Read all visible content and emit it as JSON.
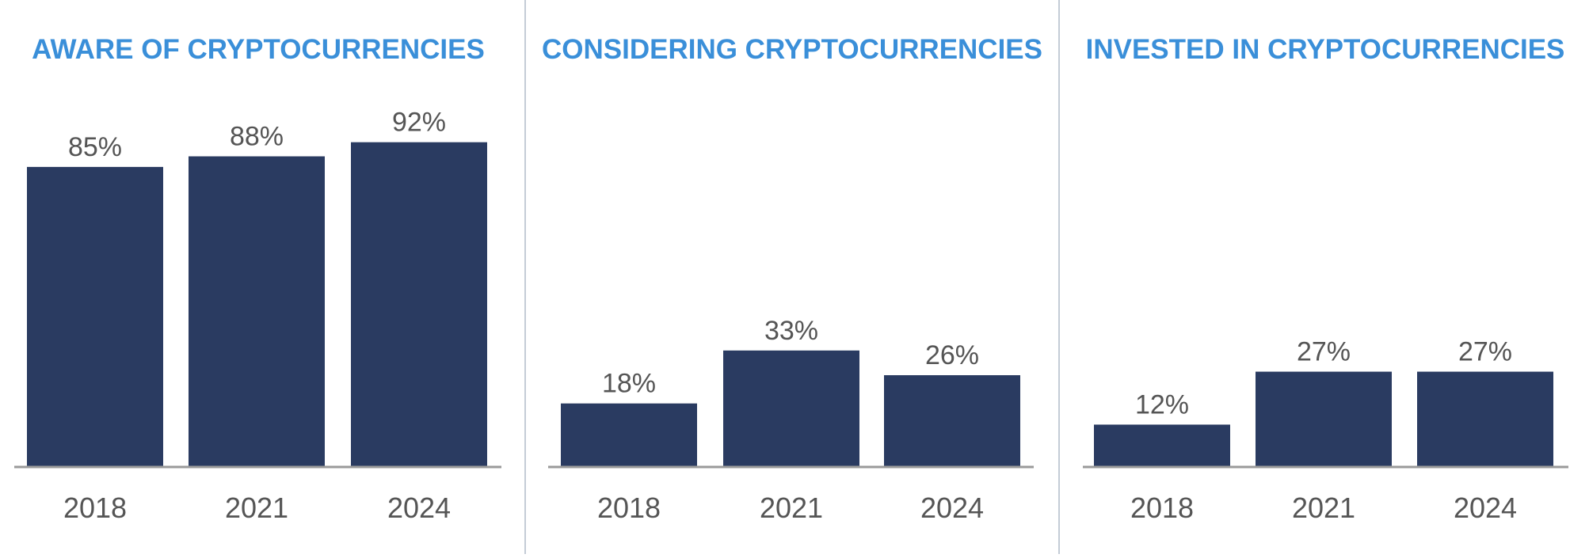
{
  "colors": {
    "bar": "#2a3b61",
    "title": "#3a8fd9",
    "label": "#555555",
    "baseline": "#9a9a9a",
    "divider": "#c4ccd6"
  },
  "chart_data": [
    {
      "type": "bar",
      "title": "AWARE OF CRYPTOCURRENCIES",
      "categories": [
        "2018",
        "2021",
        "2024"
      ],
      "values": [
        85,
        88,
        92
      ],
      "value_labels": [
        "85%",
        "88%",
        "92%"
      ],
      "ylim": [
        0,
        100
      ],
      "grid": false
    },
    {
      "type": "bar",
      "title": "CONSIDERING CRYPTOCURRENCIES",
      "categories": [
        "2018",
        "2021",
        "2024"
      ],
      "values": [
        18,
        33,
        26
      ],
      "value_labels": [
        "18%",
        "33%",
        "26%"
      ],
      "ylim": [
        0,
        100
      ],
      "grid": false
    },
    {
      "type": "bar",
      "title": "INVESTED IN CRYPTOCURRENCIES",
      "categories": [
        "2018",
        "2021",
        "2024"
      ],
      "values": [
        12,
        27,
        27
      ],
      "value_labels": [
        "12%",
        "27%",
        "27%"
      ],
      "ylim": [
        0,
        100
      ],
      "grid": false
    }
  ]
}
